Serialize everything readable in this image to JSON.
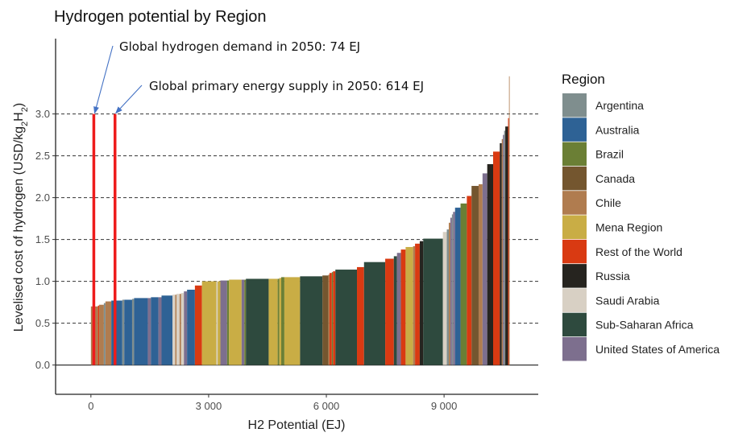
{
  "chart_data": {
    "type": "bar",
    "title": "Hydrogen potential by Region",
    "xlabel": "H2 Potential (EJ)",
    "ylabel": "Levelised cost of hydrogen (USD/kg",
    "ylabel_sub": "2",
    "ylabel_h2": "H",
    "ylabel_h2_sub": "2",
    "ylabel_close": ")",
    "xlim": [
      -900,
      11400
    ],
    "ylim": [
      -0.35,
      3.9
    ],
    "x_ticks": [
      0,
      3000,
      6000,
      9000
    ],
    "x_tick_labels": [
      "0",
      "3 000",
      "6 000",
      "9 000"
    ],
    "y_ticks": [
      0.0,
      0.5,
      1.0,
      1.5,
      2.0,
      2.5,
      3.0
    ],
    "y_tick_labels": [
      "0.0",
      "0.5",
      "1.0",
      "1.5",
      "2.0",
      "2.5",
      "3.0"
    ],
    "grid": "dashed horizontal at y ticks",
    "legend": {
      "title": "Region",
      "placement": "right",
      "items": [
        {
          "label": "Argentina",
          "color": "#7f8e8e"
        },
        {
          "label": "Australia",
          "color": "#2e6295"
        },
        {
          "label": "Brazil",
          "color": "#6b7f35"
        },
        {
          "label": "Canada",
          "color": "#74562f"
        },
        {
          "label": "Chile",
          "color": "#b07c4f"
        },
        {
          "label": "Mena Region",
          "color": "#c9ad45"
        },
        {
          "label": "Rest of the World",
          "color": "#d93a12"
        },
        {
          "label": "Russia",
          "color": "#26241f"
        },
        {
          "label": "Saudi Arabia",
          "color": "#d8d0c4"
        },
        {
          "label": "Sub-Saharan Africa",
          "color": "#2e4a3e"
        },
        {
          "label": "United States of America",
          "color": "#7d6f8e"
        }
      ]
    },
    "segments": [
      {
        "region": "Chile",
        "x_start": 0,
        "x_end": 180,
        "y": 0.7
      },
      {
        "region": "Rest of the World",
        "x_start": 180,
        "x_end": 210,
        "y": 0.71
      },
      {
        "region": "Chile",
        "x_start": 210,
        "x_end": 330,
        "y": 0.72
      },
      {
        "region": "Argentina",
        "x_start": 330,
        "x_end": 370,
        "y": 0.74
      },
      {
        "region": "Chile",
        "x_start": 370,
        "x_end": 520,
        "y": 0.76
      },
      {
        "region": "Australia",
        "x_start": 520,
        "x_end": 800,
        "y": 0.77
      },
      {
        "region": "Argentina",
        "x_start": 800,
        "x_end": 850,
        "y": 0.78
      },
      {
        "region": "Australia",
        "x_start": 850,
        "x_end": 1050,
        "y": 0.78
      },
      {
        "region": "Argentina",
        "x_start": 1050,
        "x_end": 1100,
        "y": 0.79
      },
      {
        "region": "Australia",
        "x_start": 1100,
        "x_end": 1450,
        "y": 0.8
      },
      {
        "region": "United States of America",
        "x_start": 1450,
        "x_end": 1530,
        "y": 0.8
      },
      {
        "region": "Australia",
        "x_start": 1530,
        "x_end": 1720,
        "y": 0.81
      },
      {
        "region": "United States of America",
        "x_start": 1720,
        "x_end": 1800,
        "y": 0.81
      },
      {
        "region": "Australia",
        "x_start": 1800,
        "x_end": 2080,
        "y": 0.83
      },
      {
        "region": "Saudi Arabia",
        "x_start": 2080,
        "x_end": 2150,
        "y": 0.84
      },
      {
        "region": "Chile",
        "x_start": 2150,
        "x_end": 2180,
        "y": 0.84
      },
      {
        "region": "Saudi Arabia",
        "x_start": 2180,
        "x_end": 2260,
        "y": 0.85
      },
      {
        "region": "Chile",
        "x_start": 2260,
        "x_end": 2300,
        "y": 0.85
      },
      {
        "region": "Saudi Arabia",
        "x_start": 2300,
        "x_end": 2370,
        "y": 0.86
      },
      {
        "region": "United States of America",
        "x_start": 2370,
        "x_end": 2450,
        "y": 0.88
      },
      {
        "region": "Australia",
        "x_start": 2450,
        "x_end": 2650,
        "y": 0.9
      },
      {
        "region": "Rest of the World",
        "x_start": 2650,
        "x_end": 2830,
        "y": 0.95
      },
      {
        "region": "Mena Region",
        "x_start": 2830,
        "x_end": 3200,
        "y": 1.0
      },
      {
        "region": "Saudi Arabia",
        "x_start": 3200,
        "x_end": 3230,
        "y": 1.0
      },
      {
        "region": "Mena Region",
        "x_start": 3230,
        "x_end": 3300,
        "y": 1.0
      },
      {
        "region": "United States of America",
        "x_start": 3300,
        "x_end": 3470,
        "y": 1.01
      },
      {
        "region": "Brazil",
        "x_start": 3470,
        "x_end": 3520,
        "y": 1.01
      },
      {
        "region": "Mena Region",
        "x_start": 3520,
        "x_end": 3840,
        "y": 1.02
      },
      {
        "region": "United States of America",
        "x_start": 3840,
        "x_end": 3910,
        "y": 1.02
      },
      {
        "region": "Brazil",
        "x_start": 3910,
        "x_end": 3950,
        "y": 1.02
      },
      {
        "region": "Sub-Saharan Africa",
        "x_start": 3950,
        "x_end": 4530,
        "y": 1.03
      },
      {
        "region": "Mena Region",
        "x_start": 4530,
        "x_end": 4760,
        "y": 1.03
      },
      {
        "region": "Brazil",
        "x_start": 4760,
        "x_end": 4800,
        "y": 1.03
      },
      {
        "region": "Mena Region",
        "x_start": 4800,
        "x_end": 4850,
        "y": 1.04
      },
      {
        "region": "Brazil",
        "x_start": 4850,
        "x_end": 4930,
        "y": 1.05
      },
      {
        "region": "Mena Region",
        "x_start": 4930,
        "x_end": 5330,
        "y": 1.05
      },
      {
        "region": "Sub-Saharan Africa",
        "x_start": 5330,
        "x_end": 5900,
        "y": 1.06
      },
      {
        "region": "Canada",
        "x_start": 5900,
        "x_end": 6050,
        "y": 1.07
      },
      {
        "region": "Chile",
        "x_start": 6050,
        "x_end": 6080,
        "y": 1.08
      },
      {
        "region": "Rest of the World",
        "x_start": 6080,
        "x_end": 6140,
        "y": 1.1
      },
      {
        "region": "Brazil",
        "x_start": 6140,
        "x_end": 6170,
        "y": 1.11
      },
      {
        "region": "Rest of the World",
        "x_start": 6170,
        "x_end": 6230,
        "y": 1.12
      },
      {
        "region": "Sub-Saharan Africa",
        "x_start": 6230,
        "x_end": 6780,
        "y": 1.14
      },
      {
        "region": "Rest of the World",
        "x_start": 6780,
        "x_end": 6960,
        "y": 1.17
      },
      {
        "region": "Sub-Saharan Africa",
        "x_start": 6960,
        "x_end": 7500,
        "y": 1.23
      },
      {
        "region": "Rest of the World",
        "x_start": 7500,
        "x_end": 7720,
        "y": 1.27
      },
      {
        "region": "Sub-Saharan Africa",
        "x_start": 7720,
        "x_end": 7800,
        "y": 1.3
      },
      {
        "region": "United States of America",
        "x_start": 7800,
        "x_end": 7900,
        "y": 1.34
      },
      {
        "region": "Rest of the World",
        "x_start": 7900,
        "x_end": 8020,
        "y": 1.38
      },
      {
        "region": "Mena Region",
        "x_start": 8020,
        "x_end": 8210,
        "y": 1.41
      },
      {
        "region": "Chile",
        "x_start": 8210,
        "x_end": 8260,
        "y": 1.42
      },
      {
        "region": "Rest of the World",
        "x_start": 8260,
        "x_end": 8380,
        "y": 1.45
      },
      {
        "region": "Russia",
        "x_start": 8380,
        "x_end": 8470,
        "y": 1.48
      },
      {
        "region": "Sub-Saharan Africa",
        "x_start": 8470,
        "x_end": 8970,
        "y": 1.51
      },
      {
        "region": "Saudi Arabia",
        "x_start": 8970,
        "x_end": 9070,
        "y": 1.59
      },
      {
        "region": "Argentina",
        "x_start": 9070,
        "x_end": 9120,
        "y": 1.62
      },
      {
        "region": "Chile",
        "x_start": 9120,
        "x_end": 9160,
        "y": 1.7
      },
      {
        "region": "United States of America",
        "x_start": 9160,
        "x_end": 9200,
        "y": 1.76
      },
      {
        "region": "Argentina",
        "x_start": 9200,
        "x_end": 9230,
        "y": 1.8
      },
      {
        "region": "United States of America",
        "x_start": 9230,
        "x_end": 9280,
        "y": 1.83
      },
      {
        "region": "Australia",
        "x_start": 9280,
        "x_end": 9420,
        "y": 1.88
      },
      {
        "region": "Brazil",
        "x_start": 9420,
        "x_end": 9580,
        "y": 1.93
      },
      {
        "region": "Rest of the World",
        "x_start": 9580,
        "x_end": 9700,
        "y": 2.02
      },
      {
        "region": "Canada",
        "x_start": 9700,
        "x_end": 9880,
        "y": 2.14
      },
      {
        "region": "Chile",
        "x_start": 9880,
        "x_end": 9980,
        "y": 2.16
      },
      {
        "region": "United States of America",
        "x_start": 9980,
        "x_end": 10100,
        "y": 2.29
      },
      {
        "region": "Russia",
        "x_start": 10100,
        "x_end": 10250,
        "y": 2.4
      },
      {
        "region": "Rest of the World",
        "x_start": 10250,
        "x_end": 10420,
        "y": 2.55
      },
      {
        "region": "Russia",
        "x_start": 10420,
        "x_end": 10470,
        "y": 2.65
      },
      {
        "region": "Chile",
        "x_start": 10470,
        "x_end": 10500,
        "y": 2.7
      },
      {
        "region": "United States of America",
        "x_start": 10500,
        "x_end": 10530,
        "y": 2.75
      },
      {
        "region": "Argentina",
        "x_start": 10530,
        "x_end": 10560,
        "y": 2.8
      },
      {
        "region": "Russia",
        "x_start": 10560,
        "x_end": 10630,
        "y": 2.85
      },
      {
        "region": "Rest of the World",
        "x_start": 10630,
        "x_end": 10655,
        "y": 2.95
      },
      {
        "region": "Chile",
        "x_start": 10655,
        "x_end": 10665,
        "y": 3.45
      }
    ],
    "markers": [
      {
        "x": 74,
        "y": 3.0,
        "color": "#ee1c1c"
      },
      {
        "x": 614,
        "y": 3.0,
        "color": "#ee1c1c"
      }
    ],
    "annotations": [
      {
        "text": "Global hydrogen demand in 2050: 74 EJ",
        "target_x": 74,
        "target_y": 3.0
      },
      {
        "text": "Global primary energy supply in 2050: 614 EJ",
        "target_x": 614,
        "target_y": 3.0
      }
    ]
  }
}
